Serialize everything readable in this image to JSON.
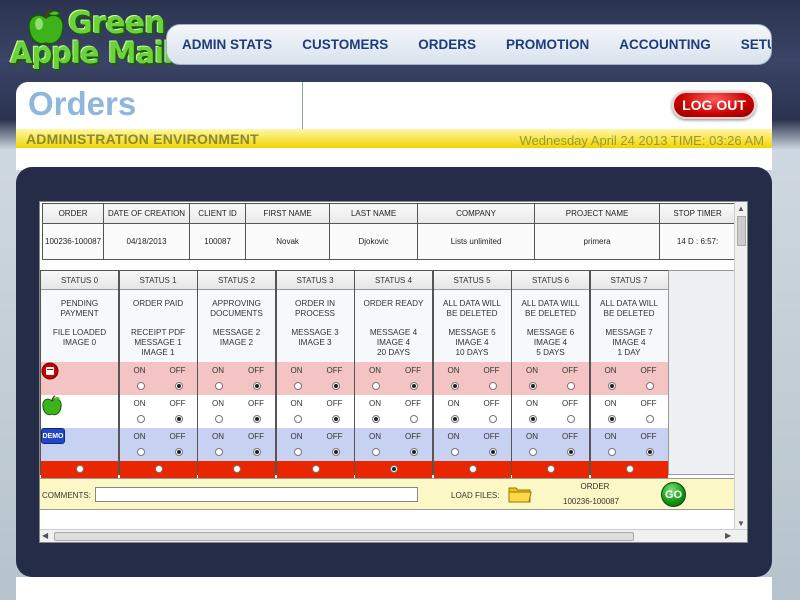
{
  "logo": {
    "line1": "Green",
    "line2": "Apple Mail"
  },
  "nav": {
    "items": [
      "ADMIN STATS",
      "CUSTOMERS",
      "ORDERS",
      "PROMOTION",
      "ACCOUNTING",
      "SETUP"
    ]
  },
  "header": {
    "title": "Orders",
    "environment": "ADMINISTRATION ENVIRONMENT",
    "datetime": "Wednesday April 24 2013 TIME: 03:26 AM",
    "logout_label": "LOG OUT"
  },
  "order_table": {
    "columns": [
      "ORDER",
      "DATE OF CREATION",
      "CLIENT ID",
      "FIRST NAME",
      "LAST NAME",
      "COMPANY",
      "PROJECT NAME",
      "STOP TIMER"
    ],
    "row": [
      "100236-100087",
      "04/18/2013",
      "100087",
      "Novak",
      "Djokovic",
      "Lists unlimited",
      "primera",
      "14 D : 6:57:"
    ]
  },
  "statuses": [
    {
      "head": "STATUS 0",
      "line1": "PENDING",
      "line2": "PAYMENT",
      "line3": "FILE LOADED",
      "line4": "IMAGE 0",
      "line5": ""
    },
    {
      "head": "STATUS 1",
      "line1": "ORDER PAID",
      "line2": "",
      "line3": "RECEIPT PDF",
      "line4": "MESSAGE 1",
      "line5": "IMAGE 1"
    },
    {
      "head": "STATUS 2",
      "line1": "APPROVING",
      "line2": "DOCUMENTS",
      "line3": "MESSAGE 2",
      "line4": "IMAGE 2",
      "line5": ""
    },
    {
      "head": "STATUS 3",
      "line1": "ORDER IN",
      "line2": "PROCESS",
      "line3": "MESSAGE 3",
      "line4": "IMAGE 3",
      "line5": ""
    },
    {
      "head": "STATUS 4",
      "line1": "ORDER READY",
      "line2": "",
      "line3": "MESSAGE 4",
      "line4": "IMAGE 4",
      "line5": "20 DAYS"
    },
    {
      "head": "STATUS 5",
      "line1": "ALL DATA WILL",
      "line2": "BE DELETED",
      "line3": "MESSAGE 5",
      "line4": "IMAGE 4",
      "line5": "10 DAYS"
    },
    {
      "head": "STATUS 6",
      "line1": "ALL DATA WILL",
      "line2": "BE DELETED",
      "line3": "MESSAGE 6",
      "line4": "IMAGE 4",
      "line5": "5 DAYS"
    },
    {
      "head": "STATUS 7",
      "line1": "ALL DATA WILL",
      "line2": "BE DELETED",
      "line3": "MESSAGE 7",
      "line4": "IMAGE 4",
      "line5": "1 DAY"
    }
  ],
  "toggle": {
    "on": "ON",
    "off": "OFF"
  },
  "row_icons": [
    "trash-bucket-icon",
    "green-apple-icon",
    "demo-folder-icon"
  ],
  "demo_label": "DEMO",
  "toggle_states": {
    "row1": [
      "off",
      "off",
      "off",
      "off",
      "off",
      "on",
      "on",
      "on"
    ],
    "row2": [
      "off",
      "off",
      "off",
      "off",
      "on",
      "on",
      "on",
      "on"
    ],
    "row3": [
      "off",
      "off",
      "off",
      "off",
      "off",
      "off",
      "off",
      "off"
    ]
  },
  "selected_status": 4,
  "footer": {
    "comments_label": "COMMENTS:",
    "comments_value": "",
    "load_files_label": "LOAD FILES:",
    "order_label": "ORDER",
    "order_value": "100236-100087",
    "go_label": "GO"
  },
  "colors": {
    "nav_text": "#1c3d78",
    "title": "#8fb6dc",
    "logout": "#c80000",
    "row_pink": "#f4c4c4",
    "row_blue": "#c7d2f3",
    "row_red": "#e82600",
    "comments_bg": "#fbf8c6",
    "go": "#139a13"
  }
}
